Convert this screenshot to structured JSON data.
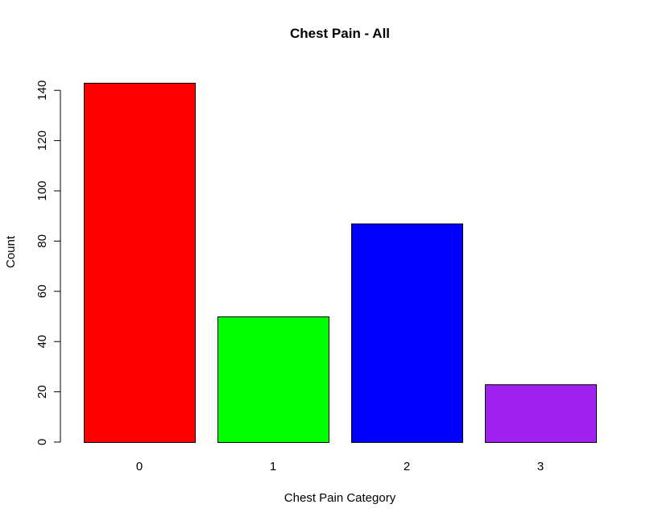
{
  "chart_data": {
    "type": "bar",
    "title": "Chest Pain - All",
    "xlabel": "Chest Pain Category",
    "ylabel": "Count",
    "categories": [
      "0",
      "1",
      "2",
      "3"
    ],
    "values": [
      143,
      50,
      87,
      23
    ],
    "colors": [
      "#ff0000",
      "#00ff00",
      "#0000ff",
      "#a020f0"
    ],
    "ylim": [
      0,
      143
    ],
    "yticks": [
      0,
      20,
      40,
      60,
      80,
      100,
      120,
      140
    ],
    "grid": false
  }
}
